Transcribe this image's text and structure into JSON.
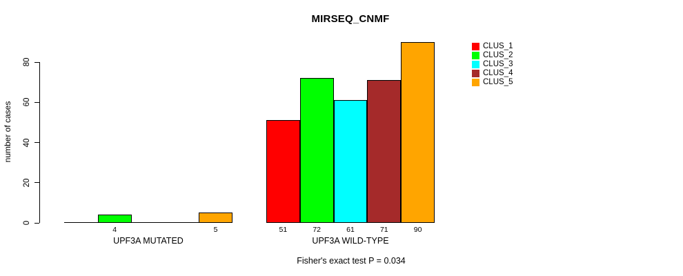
{
  "chart_data": {
    "type": "bar",
    "title": "MIRSEQ_CNMF",
    "xlabel": "",
    "ylabel": "number of cases",
    "ylim": [
      0,
      90
    ],
    "yticks": [
      0,
      20,
      40,
      60,
      80
    ],
    "grid": false,
    "legend_position": "right",
    "categories": [
      "UPF3A MUTATED",
      "UPF3A WILD-TYPE"
    ],
    "series": [
      {
        "name": "CLUS_1",
        "color": "#ff0000",
        "values": [
          0,
          51
        ]
      },
      {
        "name": "CLUS_2",
        "color": "#00ff00",
        "values": [
          4,
          72
        ]
      },
      {
        "name": "CLUS_3",
        "color": "#00ffff",
        "values": [
          0,
          61
        ]
      },
      {
        "name": "CLUS_4",
        "color": "#a52a2a",
        "values": [
          0,
          71
        ]
      },
      {
        "name": "CLUS_5",
        "color": "#ffa500",
        "values": [
          5,
          90
        ]
      }
    ],
    "bar_value_labels_shown_for_nonzero_only": true,
    "annotation": "Fisher's exact test P = 0.034"
  }
}
